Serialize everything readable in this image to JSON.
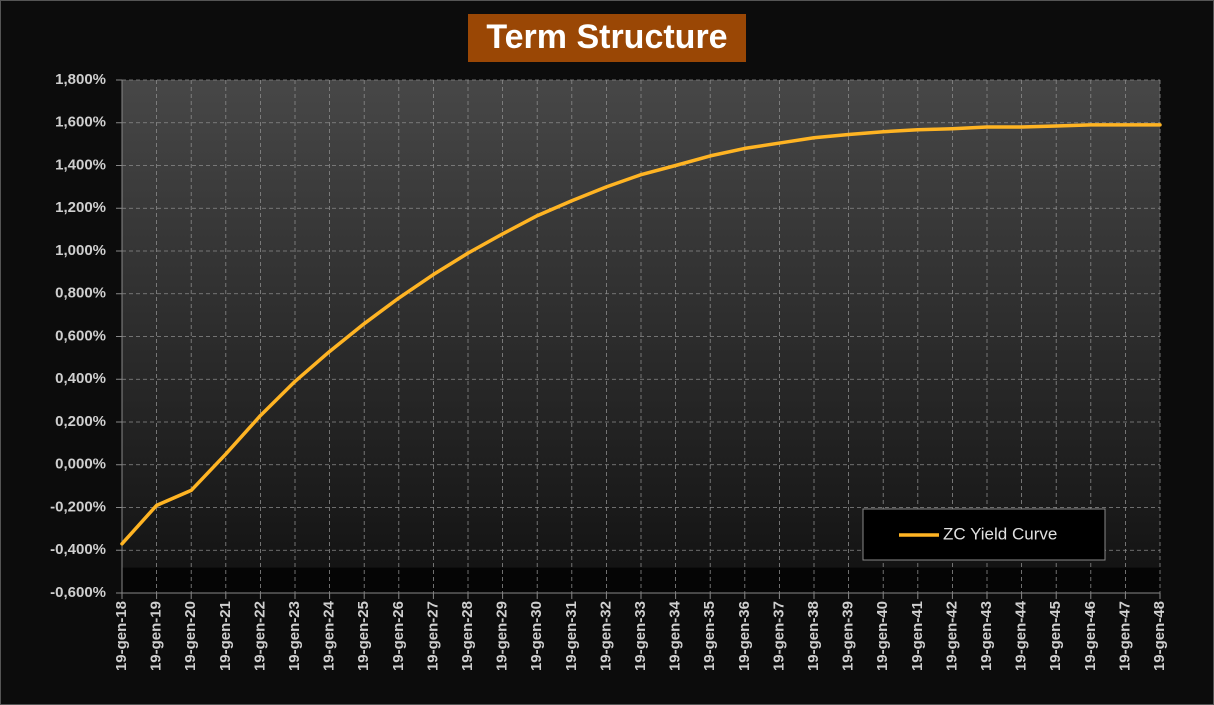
{
  "chart_data": {
    "type": "line",
    "title": "Term Structure",
    "categories": [
      "19-gen-18",
      "19-gen-19",
      "19-gen-20",
      "19-gen-21",
      "19-gen-22",
      "19-gen-23",
      "19-gen-24",
      "19-gen-25",
      "19-gen-26",
      "19-gen-27",
      "19-gen-28",
      "19-gen-29",
      "19-gen-30",
      "19-gen-31",
      "19-gen-32",
      "19-gen-33",
      "19-gen-34",
      "19-gen-35",
      "19-gen-36",
      "19-gen-37",
      "19-gen-38",
      "19-gen-39",
      "19-gen-40",
      "19-gen-41",
      "19-gen-42",
      "19-gen-43",
      "19-gen-44",
      "19-gen-45",
      "19-gen-46",
      "19-gen-47",
      "19-gen-48"
    ],
    "series": [
      {
        "name": "ZC Yield Curve",
        "color": "#ffb423",
        "values": [
          -0.37,
          -0.19,
          -0.12,
          0.05,
          0.23,
          0.39,
          0.53,
          0.66,
          0.78,
          0.89,
          0.99,
          1.08,
          1.165,
          1.235,
          1.3,
          1.357,
          1.4,
          1.445,
          1.48,
          1.505,
          1.53,
          1.545,
          1.558,
          1.567,
          1.572,
          1.58,
          1.58,
          1.585,
          1.59,
          1.59,
          1.59
        ]
      }
    ],
    "ylim": [
      -0.6,
      1.8
    ],
    "yticks": [
      {
        "value": -0.6,
        "label": "-0,600%"
      },
      {
        "value": -0.4,
        "label": "-0,400%"
      },
      {
        "value": -0.2,
        "label": "-0,200%"
      },
      {
        "value": 0,
        "label": "0,000%"
      },
      {
        "value": 0.2,
        "label": "0,200%"
      },
      {
        "value": 0.4,
        "label": "0,400%"
      },
      {
        "value": 0.6,
        "label": "0,600%"
      },
      {
        "value": 0.8,
        "label": "0,800%"
      },
      {
        "value": 1.0,
        "label": "1,000%"
      },
      {
        "value": 1.2,
        "label": "1,200%"
      },
      {
        "value": 1.4,
        "label": "1,400%"
      },
      {
        "value": 1.6,
        "label": "1,600%"
      },
      {
        "value": 1.8,
        "label": "1,800%"
      }
    ],
    "grid": true,
    "legend": "lower right"
  }
}
